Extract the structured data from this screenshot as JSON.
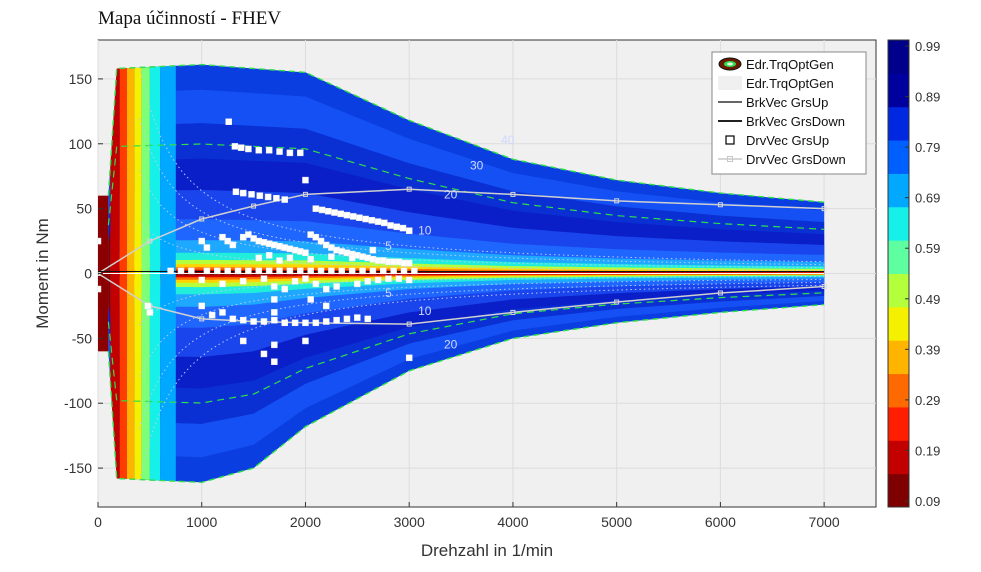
{
  "chart_data": {
    "type": "contour",
    "title": "Mapa účinností - FHEV",
    "xlabel": "Drehzahl in 1/min",
    "ylabel": "Moment in Nm",
    "xlim": [
      0,
      7500
    ],
    "ylim": [
      -180,
      180
    ],
    "xticks": [
      0,
      1000,
      2000,
      3000,
      4000,
      5000,
      6000,
      7000
    ],
    "yticks": [
      -150,
      -100,
      -50,
      0,
      50,
      100,
      150
    ],
    "grid": true,
    "colorbar": {
      "min": 0.09,
      "max": 0.99,
      "ticks": [
        "0.99",
        "0.89",
        "0.79",
        "0.69",
        "0.59",
        "0.49",
        "0.39",
        "0.29",
        "0.19",
        "0.09"
      ],
      "colors": [
        "#7f0000",
        "#c30000",
        "#ff1e00",
        "#ff6a00",
        "#ffb400",
        "#f5ef00",
        "#b4ff3c",
        "#5effa0",
        "#16f0e8",
        "#00a8ff",
        "#0060ff",
        "#0028e0",
        "#00009e",
        "#00008b"
      ]
    },
    "legend_position": "top-right",
    "legend": [
      {
        "label": "Edr.TrqOptGen",
        "style": "ellipse-marker"
      },
      {
        "label": "Edr.TrqOptGen",
        "style": "light-patch"
      },
      {
        "label": "BrkVec GrsUp",
        "style": "dark-line"
      },
      {
        "label": "BrkVec GrsDown",
        "style": "black-line"
      },
      {
        "label": "DrvVec GrsUp",
        "style": "square-marker"
      },
      {
        "label": "DrvVec GrsDown",
        "style": "light-line-square"
      }
    ],
    "contour_labels": [
      {
        "text": "40",
        "x": 3950,
        "y": 100
      },
      {
        "text": "30",
        "x": 3650,
        "y": 80
      },
      {
        "text": "20",
        "x": 3400,
        "y": 58
      },
      {
        "text": "10",
        "x": 3150,
        "y": 30
      },
      {
        "text": "5",
        "x": 2800,
        "y": 18
      },
      {
        "text": "5",
        "x": 2800,
        "y": -18
      },
      {
        "text": "10",
        "x": 3150,
        "y": -32
      },
      {
        "text": "20",
        "x": 3400,
        "y": -58
      }
    ],
    "torque_limit_upper": [
      [
        100,
        60
      ],
      [
        180,
        158
      ],
      [
        1000,
        161
      ],
      [
        2000,
        155
      ],
      [
        3000,
        118
      ],
      [
        4000,
        88
      ],
      [
        5000,
        72
      ],
      [
        6000,
        62
      ],
      [
        7000,
        55
      ]
    ],
    "torque_limit_lower": [
      [
        100,
        -60
      ],
      [
        180,
        -158
      ],
      [
        1000,
        -161
      ],
      [
        1500,
        -150
      ],
      [
        2000,
        -118
      ],
      [
        3000,
        -75
      ],
      [
        4000,
        -50
      ],
      [
        5000,
        -38
      ],
      [
        6000,
        -30
      ],
      [
        7000,
        -24
      ]
    ],
    "opt_line_upper": [
      [
        0,
        0
      ],
      [
        500,
        25
      ],
      [
        1000,
        42
      ],
      [
        1500,
        52
      ],
      [
        2000,
        61
      ],
      [
        3000,
        65
      ],
      [
        4000,
        61
      ],
      [
        5000,
        56
      ],
      [
        6000,
        53
      ],
      [
        7000,
        50
      ]
    ],
    "opt_line_lower": [
      [
        0,
        0
      ],
      [
        500,
        -25
      ],
      [
        1000,
        -35
      ],
      [
        1500,
        -37
      ],
      [
        2000,
        -38
      ],
      [
        3000,
        -39
      ],
      [
        4000,
        -30
      ],
      [
        5000,
        -22
      ],
      [
        6000,
        -15
      ],
      [
        7000,
        -10
      ]
    ],
    "drv_points": [
      [
        1260,
        117
      ],
      [
        1320,
        98
      ],
      [
        1380,
        97
      ],
      [
        1450,
        96
      ],
      [
        1550,
        95
      ],
      [
        1650,
        95
      ],
      [
        1750,
        94
      ],
      [
        1850,
        93
      ],
      [
        1950,
        93
      ],
      [
        1330,
        63
      ],
      [
        1400,
        62
      ],
      [
        1480,
        61
      ],
      [
        1560,
        60
      ],
      [
        1640,
        59
      ],
      [
        1720,
        58
      ],
      [
        1800,
        57
      ],
      [
        2000,
        72
      ],
      [
        2100,
        50
      ],
      [
        2160,
        49
      ],
      [
        2220,
        48
      ],
      [
        2280,
        47
      ],
      [
        2340,
        46
      ],
      [
        2400,
        45
      ],
      [
        2460,
        44
      ],
      [
        2520,
        43
      ],
      [
        2580,
        42
      ],
      [
        2640,
        41
      ],
      [
        2700,
        40
      ],
      [
        2760,
        39
      ],
      [
        2820,
        37
      ],
      [
        2880,
        36
      ],
      [
        2940,
        35
      ],
      [
        3000,
        33
      ],
      [
        1000,
        25
      ],
      [
        1050,
        20
      ],
      [
        1200,
        28
      ],
      [
        1250,
        25
      ],
      [
        1300,
        22
      ],
      [
        1400,
        28
      ],
      [
        1450,
        30
      ],
      [
        1500,
        27
      ],
      [
        1550,
        25
      ],
      [
        1600,
        24
      ],
      [
        1650,
        23
      ],
      [
        1700,
        22
      ],
      [
        1750,
        21
      ],
      [
        1800,
        20
      ],
      [
        1850,
        19
      ],
      [
        1900,
        18
      ],
      [
        1950,
        17
      ],
      [
        2000,
        16
      ],
      [
        2050,
        30
      ],
      [
        2100,
        28
      ],
      [
        2150,
        25
      ],
      [
        2200,
        22
      ],
      [
        2250,
        20
      ],
      [
        2300,
        18
      ],
      [
        2350,
        17
      ],
      [
        2400,
        16
      ],
      [
        2450,
        15
      ],
      [
        2500,
        14
      ],
      [
        2550,
        13
      ],
      [
        2600,
        12
      ],
      [
        2650,
        11
      ],
      [
        2700,
        10
      ],
      [
        2750,
        10
      ],
      [
        2800,
        9
      ],
      [
        2850,
        9
      ],
      [
        2900,
        9
      ],
      [
        2950,
        8
      ],
      [
        3000,
        8
      ],
      [
        1550,
        12
      ],
      [
        1650,
        14
      ],
      [
        1750,
        10
      ],
      [
        1850,
        12
      ],
      [
        2050,
        11
      ],
      [
        2250,
        13
      ],
      [
        2450,
        12
      ],
      [
        2650,
        18
      ],
      [
        700,
        2
      ],
      [
        800,
        2
      ],
      [
        900,
        2
      ],
      [
        1050,
        2
      ],
      [
        1150,
        2
      ],
      [
        1250,
        2
      ],
      [
        1350,
        2
      ],
      [
        1450,
        2
      ],
      [
        1550,
        2
      ],
      [
        1650,
        2
      ],
      [
        1750,
        2
      ],
      [
        1850,
        2
      ],
      [
        1950,
        2
      ],
      [
        2050,
        2
      ],
      [
        2150,
        2
      ],
      [
        2250,
        2
      ],
      [
        2350,
        2
      ],
      [
        2450,
        2
      ],
      [
        2550,
        2
      ],
      [
        2650,
        2
      ],
      [
        2750,
        2
      ],
      [
        2850,
        2
      ],
      [
        2950,
        2
      ],
      [
        3050,
        2
      ],
      [
        0,
        25
      ],
      [
        0,
        -12
      ],
      [
        1000,
        -5
      ],
      [
        1200,
        -8
      ],
      [
        1400,
        -6
      ],
      [
        1600,
        -4
      ],
      [
        1700,
        -10
      ],
      [
        1800,
        -12
      ],
      [
        1900,
        -6
      ],
      [
        2000,
        -4
      ],
      [
        2100,
        -8
      ],
      [
        2200,
        -12
      ],
      [
        2300,
        -10
      ],
      [
        2500,
        -8
      ],
      [
        2600,
        -6
      ],
      [
        2700,
        -5
      ],
      [
        2800,
        -4
      ],
      [
        2900,
        -4
      ],
      [
        3000,
        -5
      ],
      [
        1200,
        -30
      ],
      [
        1300,
        -35
      ],
      [
        1400,
        -36
      ],
      [
        1500,
        -37
      ],
      [
        1600,
        -37
      ],
      [
        1700,
        -36
      ],
      [
        1800,
        -38
      ],
      [
        1900,
        -38
      ],
      [
        2000,
        -38
      ],
      [
        2100,
        -38
      ],
      [
        2200,
        -37
      ],
      [
        2300,
        -36
      ],
      [
        2400,
        -35
      ],
      [
        2500,
        -34
      ],
      [
        2600,
        -35
      ],
      [
        1400,
        -52
      ],
      [
        1700,
        -55
      ],
      [
        1600,
        -62
      ],
      [
        1700,
        -68
      ],
      [
        3000,
        -65
      ],
      [
        2000,
        -52
      ],
      [
        1000,
        -25
      ],
      [
        1100,
        -32
      ],
      [
        480,
        -25
      ],
      [
        500,
        -30
      ],
      [
        1700,
        -20
      ],
      [
        2050,
        -20
      ],
      [
        2200,
        -25
      ],
      [
        1700,
        -30
      ]
    ]
  }
}
